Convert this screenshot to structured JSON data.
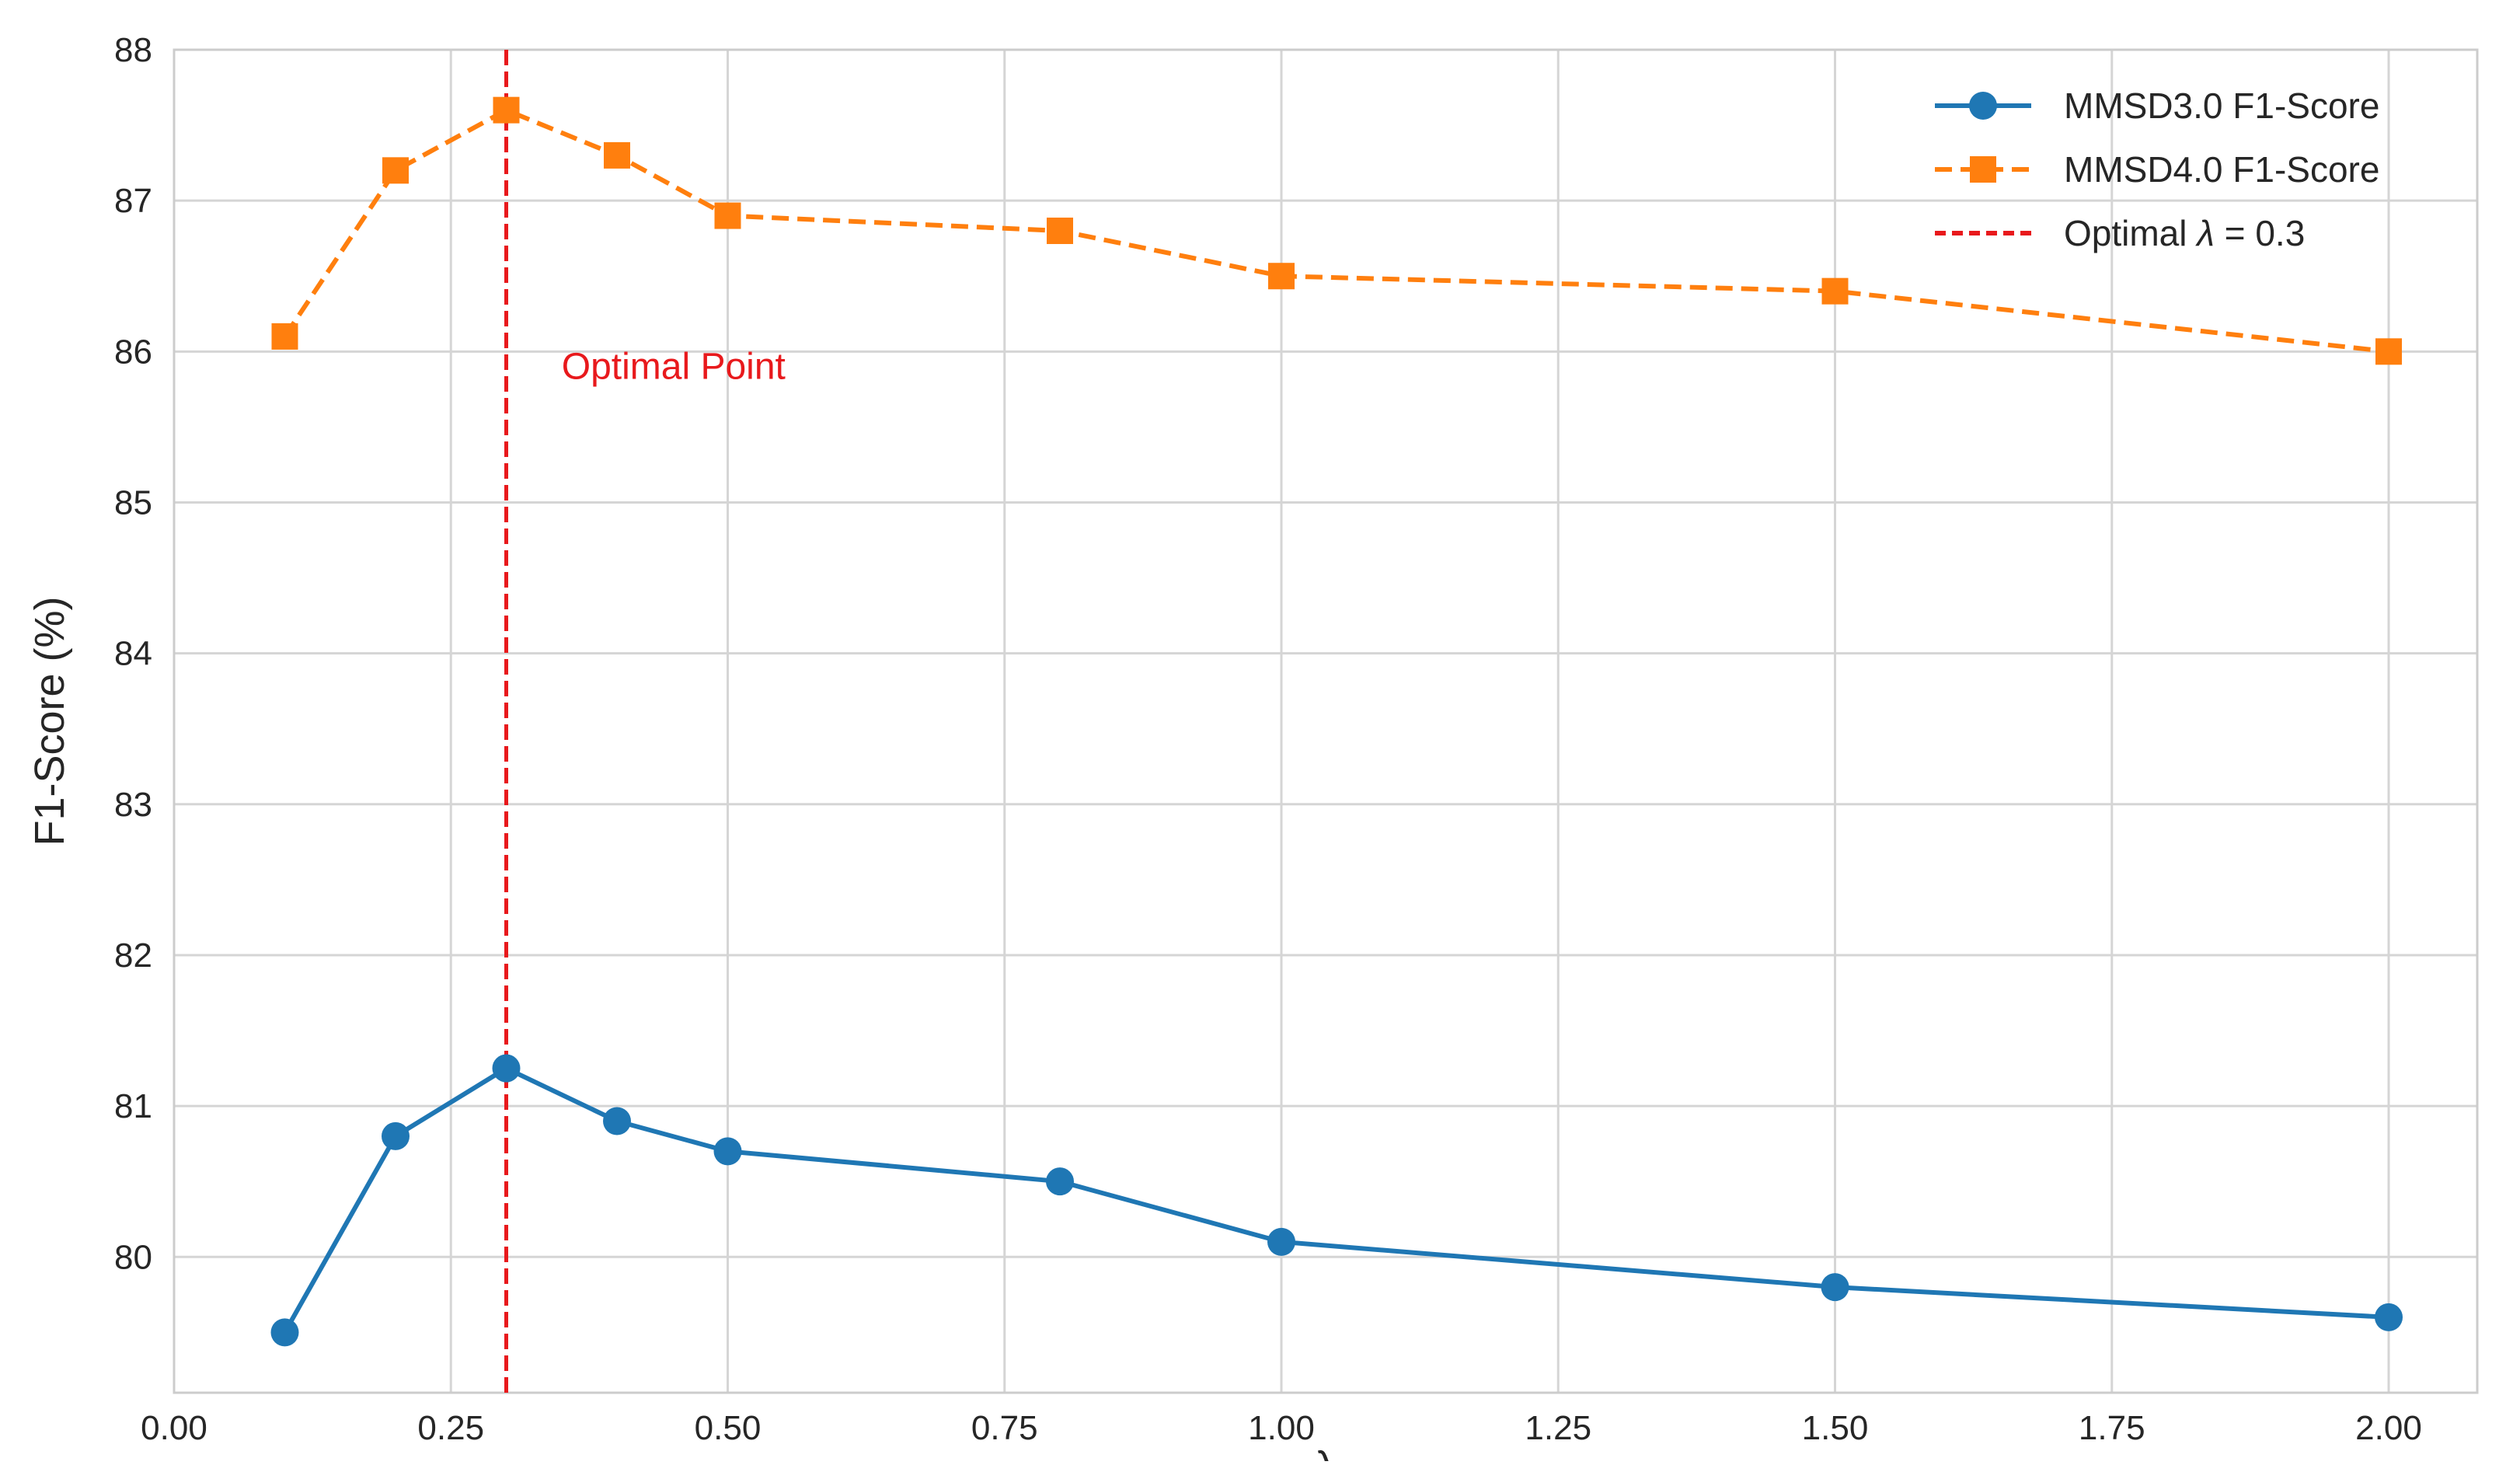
{
  "chart_data": {
    "type": "line",
    "title": "",
    "xlabel": "λ",
    "ylabel": "F1-Score (%)",
    "xlim": [
      0,
      2.08
    ],
    "ylim": [
      79.1,
      88
    ],
    "grid": true,
    "legend_position": "top-right",
    "x": [
      0.1,
      0.2,
      0.3,
      0.4,
      0.5,
      0.8,
      1.0,
      1.5,
      2.0
    ],
    "x_ticks": [
      0,
      0.25,
      0.5,
      0.75,
      1.0,
      1.25,
      1.5,
      1.75,
      2.0
    ],
    "x_tick_labels": [
      "0.00",
      "0.25",
      "0.50",
      "0.75",
      "1.00",
      "1.25",
      "1.50",
      "1.75",
      "2.00"
    ],
    "y_ticks": [
      80,
      81,
      82,
      83,
      84,
      85,
      86,
      87,
      88
    ],
    "y_tick_labels": [
      "80",
      "81",
      "82",
      "83",
      "84",
      "85",
      "86",
      "87",
      "88"
    ],
    "series": [
      {
        "name": "MMSD3.0 F1-Score",
        "color": "#1f77b4",
        "marker": "circle",
        "line_style": "solid",
        "values": [
          79.5,
          80.8,
          81.25,
          80.9,
          80.7,
          80.5,
          80.1,
          79.8,
          79.6
        ]
      },
      {
        "name": "MMSD4.0 F1-Score",
        "color": "#ff7f0e",
        "marker": "square",
        "line_style": "dashed",
        "values": [
          86.1,
          87.2,
          87.6,
          87.3,
          86.9,
          86.8,
          86.5,
          86.4,
          86.0
        ]
      }
    ],
    "reference_line": {
      "orientation": "vertical",
      "x": 0.3,
      "color": "#e8191c",
      "line_style": "dashed",
      "legend_prefix": "Optimal ",
      "legend_symbol": "λ",
      "legend_suffix": " = 0.3"
    },
    "annotations": [
      {
        "text": "Optimal Point",
        "x": 0.35,
        "y": 85.9,
        "color": "#e8191c"
      }
    ]
  }
}
